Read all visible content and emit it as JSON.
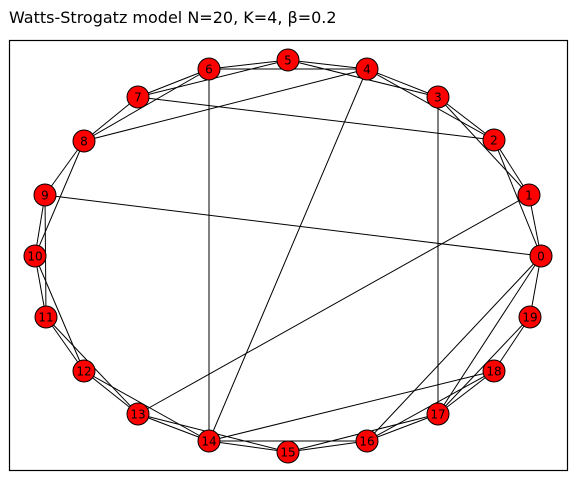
{
  "title": "Watts-Strogatz model N=20, K=4, β=0.2",
  "colors": {
    "node_fill": "#ff0000",
    "node_stroke": "#000000",
    "edge": "#000000",
    "frame": "#000000",
    "background": "#ffffff"
  },
  "graph": {
    "nodes": [
      "0",
      "1",
      "2",
      "3",
      "4",
      "5",
      "6",
      "7",
      "8",
      "9",
      "10",
      "11",
      "12",
      "13",
      "14",
      "15",
      "16",
      "17",
      "18",
      "19"
    ],
    "edges": [
      [
        "0",
        "1"
      ],
      [
        "0",
        "2"
      ],
      [
        "0",
        "19"
      ],
      [
        "0",
        "9"
      ],
      [
        "0",
        "17"
      ],
      [
        "0",
        "16"
      ],
      [
        "1",
        "2"
      ],
      [
        "1",
        "3"
      ],
      [
        "1",
        "13"
      ],
      [
        "2",
        "3"
      ],
      [
        "2",
        "4"
      ],
      [
        "2",
        "7"
      ],
      [
        "3",
        "4"
      ],
      [
        "3",
        "5"
      ],
      [
        "3",
        "17"
      ],
      [
        "4",
        "5"
      ],
      [
        "4",
        "6"
      ],
      [
        "4",
        "8"
      ],
      [
        "4",
        "14"
      ],
      [
        "5",
        "6"
      ],
      [
        "5",
        "7"
      ],
      [
        "6",
        "7"
      ],
      [
        "6",
        "8"
      ],
      [
        "6",
        "14"
      ],
      [
        "7",
        "8"
      ],
      [
        "8",
        "9"
      ],
      [
        "8",
        "10"
      ],
      [
        "9",
        "10"
      ],
      [
        "9",
        "11"
      ],
      [
        "10",
        "11"
      ],
      [
        "10",
        "12"
      ],
      [
        "11",
        "12"
      ],
      [
        "11",
        "13"
      ],
      [
        "12",
        "13"
      ],
      [
        "12",
        "14"
      ],
      [
        "13",
        "14"
      ],
      [
        "13",
        "15"
      ],
      [
        "14",
        "15"
      ],
      [
        "14",
        "16"
      ],
      [
        "14",
        "18"
      ],
      [
        "15",
        "16"
      ],
      [
        "15",
        "17"
      ],
      [
        "16",
        "17"
      ],
      [
        "16",
        "18"
      ],
      [
        "17",
        "18"
      ],
      [
        "17",
        "19"
      ],
      [
        "18",
        "19"
      ]
    ]
  }
}
